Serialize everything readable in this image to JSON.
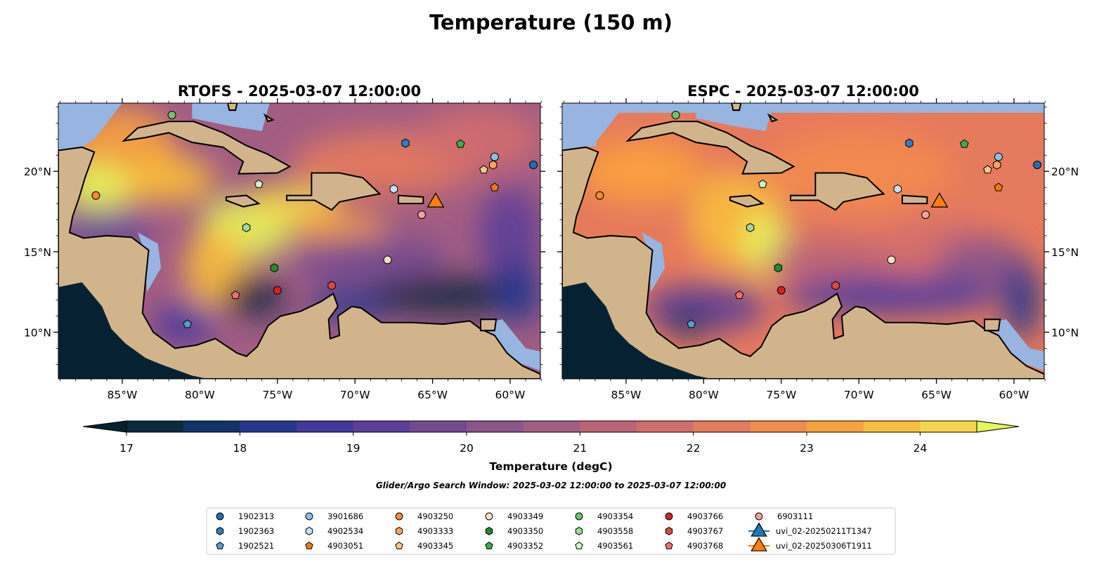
{
  "title": "Temperature (150 m)",
  "panels": [
    {
      "id": "rtofs",
      "title": "RTOFS - 2025-03-07 12:00:00"
    },
    {
      "id": "espc",
      "title": "ESPC - 2025-03-07 12:00:00"
    }
  ],
  "axes": {
    "lon_ticks": [
      -85,
      -80,
      -75,
      -70,
      -65,
      -60
    ],
    "lon_labels": [
      "85°W",
      "80°W",
      "75°W",
      "70°W",
      "65°W",
      "60°W"
    ],
    "lat_ticks": [
      20,
      15,
      10
    ],
    "lat_labels": [
      "20°N",
      "15°N",
      "10°N"
    ],
    "lon_range": [
      -89.12,
      -58.05
    ],
    "lat_range": [
      7.1,
      24.24
    ]
  },
  "colorbar": {
    "label": "Temperature (degC)",
    "min": 17,
    "max": 24.5,
    "step": 0.5,
    "ticks": [
      "17",
      "18",
      "19",
      "20",
      "21",
      "22",
      "23",
      "24"
    ],
    "colors": [
      "#0b2a40",
      "#12326a",
      "#26368f",
      "#43389e",
      "#5c3f97",
      "#734a8f",
      "#8a5589",
      "#a25d83",
      "#bb6478",
      "#d26d6e",
      "#e67a5d",
      "#f38b4d",
      "#f9a23d",
      "#f8bc3e",
      "#f3d64a"
    ],
    "under": "#052030",
    "over": "#e4f75c",
    "extend": "both"
  },
  "search_window": "Glider/Argo Search Window: 2025-03-02 12:00:00 to 2025-03-07 12:00:00",
  "colors": {
    "land": "#d2b48c",
    "shelf": "#97b5e0",
    "pacific": "#062232"
  },
  "platforms": [
    {
      "id": "1902313",
      "shape": "circle",
      "color": "#1f6fb0",
      "lon": -58.5,
      "lat": 20.4
    },
    {
      "id": "1902363",
      "shape": "hexagon",
      "color": "#2f7fc0",
      "lon": -66.75,
      "lat": 21.75
    },
    {
      "id": "1902521",
      "shape": "pentagon",
      "color": "#5a9bd0",
      "lon": -80.8,
      "lat": 10.5
    },
    {
      "id": "3901686",
      "shape": "circle",
      "color": "#8cc0e8",
      "lon": -61.0,
      "lat": 20.9
    },
    {
      "id": "4902534",
      "shape": "hexagon",
      "color": "#c6e2f7",
      "lon": -67.5,
      "lat": 18.9
    },
    {
      "id": "4903051",
      "shape": "pentagon",
      "color": "#f07a10",
      "lon": -61.0,
      "lat": 19.0
    },
    {
      "id": "4903250",
      "shape": "circle",
      "color": "#f48e35",
      "lon": -86.7,
      "lat": 18.5
    },
    {
      "id": "4903333",
      "shape": "hexagon",
      "color": "#f8a45e",
      "lon": -61.1,
      "lat": 20.4
    },
    {
      "id": "4903345",
      "shape": "pentagon",
      "color": "#fcc58e",
      "lon": -61.7,
      "lat": 20.1
    },
    {
      "id": "4903349",
      "shape": "circle",
      "color": "#fde0c5",
      "lon": -67.9,
      "lat": 14.5
    },
    {
      "id": "4903350",
      "shape": "hexagon",
      "color": "#238b2d",
      "lon": -75.2,
      "lat": 14.0
    },
    {
      "id": "4903352",
      "shape": "pentagon",
      "color": "#41ab4c",
      "lon": -63.2,
      "lat": 21.7
    },
    {
      "id": "4903354",
      "shape": "circle",
      "color": "#6fc46b",
      "lon": -81.8,
      "lat": 23.5
    },
    {
      "id": "4903558",
      "shape": "hexagon",
      "color": "#a1d99b",
      "lon": -77.0,
      "lat": 16.5
    },
    {
      "id": "4903561",
      "shape": "pentagon",
      "color": "#d4f0cd",
      "lon": -76.2,
      "lat": 19.2
    },
    {
      "id": "4903766",
      "shape": "circle",
      "color": "#d62020",
      "lon": -75.0,
      "lat": 12.6
    },
    {
      "id": "4903767",
      "shape": "hexagon",
      "color": "#e04545",
      "lon": -71.5,
      "lat": 12.9
    },
    {
      "id": "4903768",
      "shape": "pentagon",
      "color": "#f07070",
      "lon": -77.7,
      "lat": 12.3
    },
    {
      "id": "6903111",
      "shape": "circle",
      "color": "#f4a0a0",
      "lon": -65.7,
      "lat": 17.3
    },
    {
      "id": "uvi_02-20250211T1347",
      "shape": "triangle",
      "color": "#1f77b4",
      "lon": -64.8,
      "lat": 18.2
    },
    {
      "id": "uvi_02-20250306T1911",
      "shape": "triangle",
      "color": "#ff7f0e",
      "lon": -64.8,
      "lat": 18.2
    }
  ]
}
